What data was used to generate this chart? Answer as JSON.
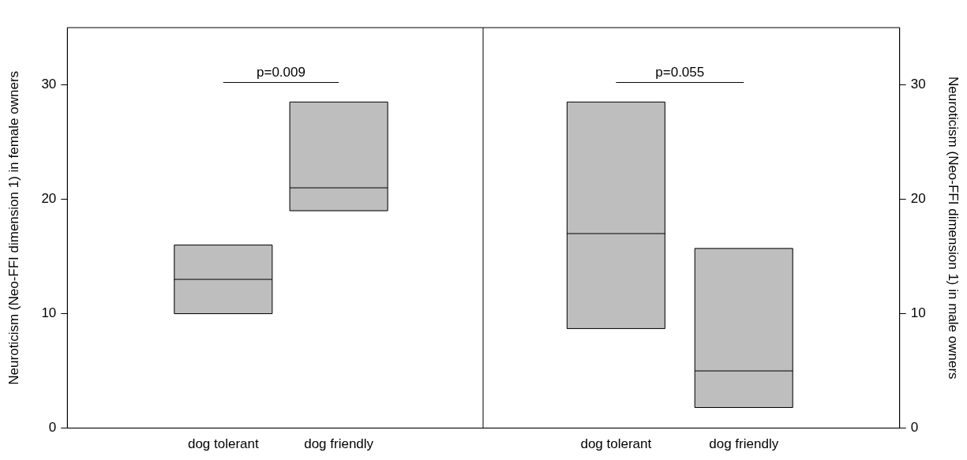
{
  "chart_data": [
    {
      "type": "box",
      "ylabel": "Neuroticism (Neo-FFI dimension 1) in female owners",
      "categories": [
        "dog tolerant",
        "dog friendly"
      ],
      "color": "#bebebe",
      "boxes": [
        {
          "low": 10,
          "q1": 10,
          "median": 13,
          "q3": 16,
          "high": 16
        },
        {
          "low": 19,
          "q1": 19,
          "median": 21,
          "q3": 28.5,
          "high": 28.5
        }
      ],
      "ylim": [
        0,
        35
      ],
      "yticks": [
        0,
        10,
        20,
        30
      ],
      "grid": false,
      "annotations": [
        "p=0.009"
      ]
    },
    {
      "type": "box",
      "ylabel": "Neuroticism (Neo-FFI dimension 1) in male owners",
      "categories": [
        "dog tolerant",
        "dog friendly"
      ],
      "color": "#bebebe",
      "boxes": [
        {
          "low": 8.7,
          "q1": 8.7,
          "median": 17,
          "q3": 28.5,
          "high": 28.5
        },
        {
          "low": 1.8,
          "q1": 1.8,
          "median": 5,
          "q3": 15.7,
          "high": 15.7
        }
      ],
      "ylim": [
        0,
        35
      ],
      "yticks": [
        0,
        10,
        20,
        30
      ],
      "grid": false,
      "annotations": [
        "p=0.055"
      ]
    }
  ]
}
